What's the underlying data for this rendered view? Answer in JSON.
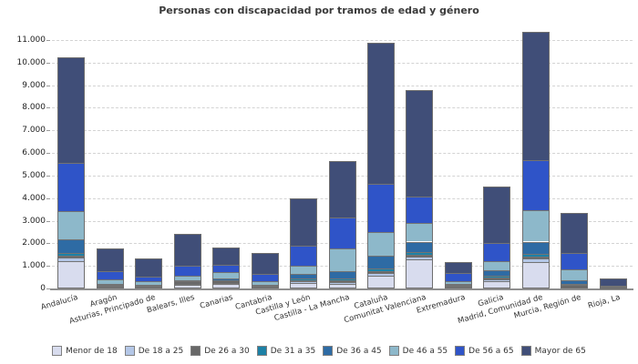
{
  "title": "Personas con discapacidad por tramos de edad y género",
  "y_axis": {
    "tick_labels": [
      "0",
      "1.000",
      "2.000",
      "3.000",
      "4.000",
      "5.000",
      "6.000",
      "7.000",
      "8.000",
      "9.000",
      "10.000",
      "11.000"
    ],
    "max": 11000
  },
  "chart_data": {
    "type": "bar",
    "subtype": "stacked",
    "title": "Personas con discapacidad por tramos de edad y género",
    "categories": [
      "Andalucía",
      "Aragón",
      "Asturias, Principado de",
      "Balears, Illes",
      "Canarias",
      "Cantabria",
      "Castilla y León",
      "Castilla - La Mancha",
      "Cataluña",
      "Comunitat Valenciana",
      "Extremadura",
      "Galicia",
      "Madrid, Comunidad de",
      "Murcia, Región de",
      "Rioja, La"
    ],
    "series": [
      {
        "name": "Menor de 18",
        "color": "#d8dcee",
        "values": [
          1200,
          90,
          70,
          180,
          200,
          80,
          260,
          200,
          550,
          1300,
          65,
          310,
          1150,
          30,
          10
        ]
      },
      {
        "name": "De 18 a 25",
        "color": "#b4c7e7",
        "values": [
          150,
          25,
          25,
          25,
          36,
          15,
          60,
          69,
          130,
          130,
          15,
          105,
          175,
          20,
          5
        ]
      },
      {
        "name": "De 26 a 30",
        "color": "#686868",
        "values": [
          100,
          18,
          15,
          110,
          110,
          10,
          50,
          81,
          95,
          70,
          60,
          60,
          90,
          120,
          5
        ]
      },
      {
        "name": "De 31 a 35",
        "color": "#1d81a6",
        "values": [
          120,
          22,
          20,
          15,
          30,
          13,
          69,
          81,
          130,
          105,
          20,
          80,
          135,
          20,
          5
        ]
      },
      {
        "name": "De 36 a 45",
        "color": "#2e6ba4",
        "values": [
          600,
          56,
          50,
          30,
          60,
          30,
          200,
          335,
          530,
          470,
          40,
          240,
          525,
          160,
          15
        ]
      },
      {
        "name": "De 46 a 55",
        "color": "#8db8ca",
        "values": [
          1250,
          200,
          135,
          200,
          295,
          172,
          375,
          1008,
          1050,
          835,
          140,
          400,
          1390,
          495,
          30
        ]
      },
      {
        "name": "De 56 a 65",
        "color": "#2f54c8",
        "values": [
          2150,
          340,
          200,
          430,
          335,
          335,
          876,
          1371,
          2150,
          1140,
          330,
          805,
          2215,
          725,
          70
        ]
      },
      {
        "name": "Mayor de 65",
        "color": "#404e78",
        "values": [
          4680,
          1010,
          815,
          1410,
          764,
          935,
          2110,
          2505,
          6225,
          4750,
          480,
          2500,
          5670,
          1780,
          290
        ]
      }
    ],
    "totals": [
      10250,
      1761,
      1330,
      2400,
      1830,
      1590,
      4000,
      5650,
      10860,
      8800,
      1150,
      4500,
      11350,
      3350,
      430
    ],
    "ylim": [
      0,
      11000
    ],
    "grid": true,
    "legend_position": "bottom"
  }
}
